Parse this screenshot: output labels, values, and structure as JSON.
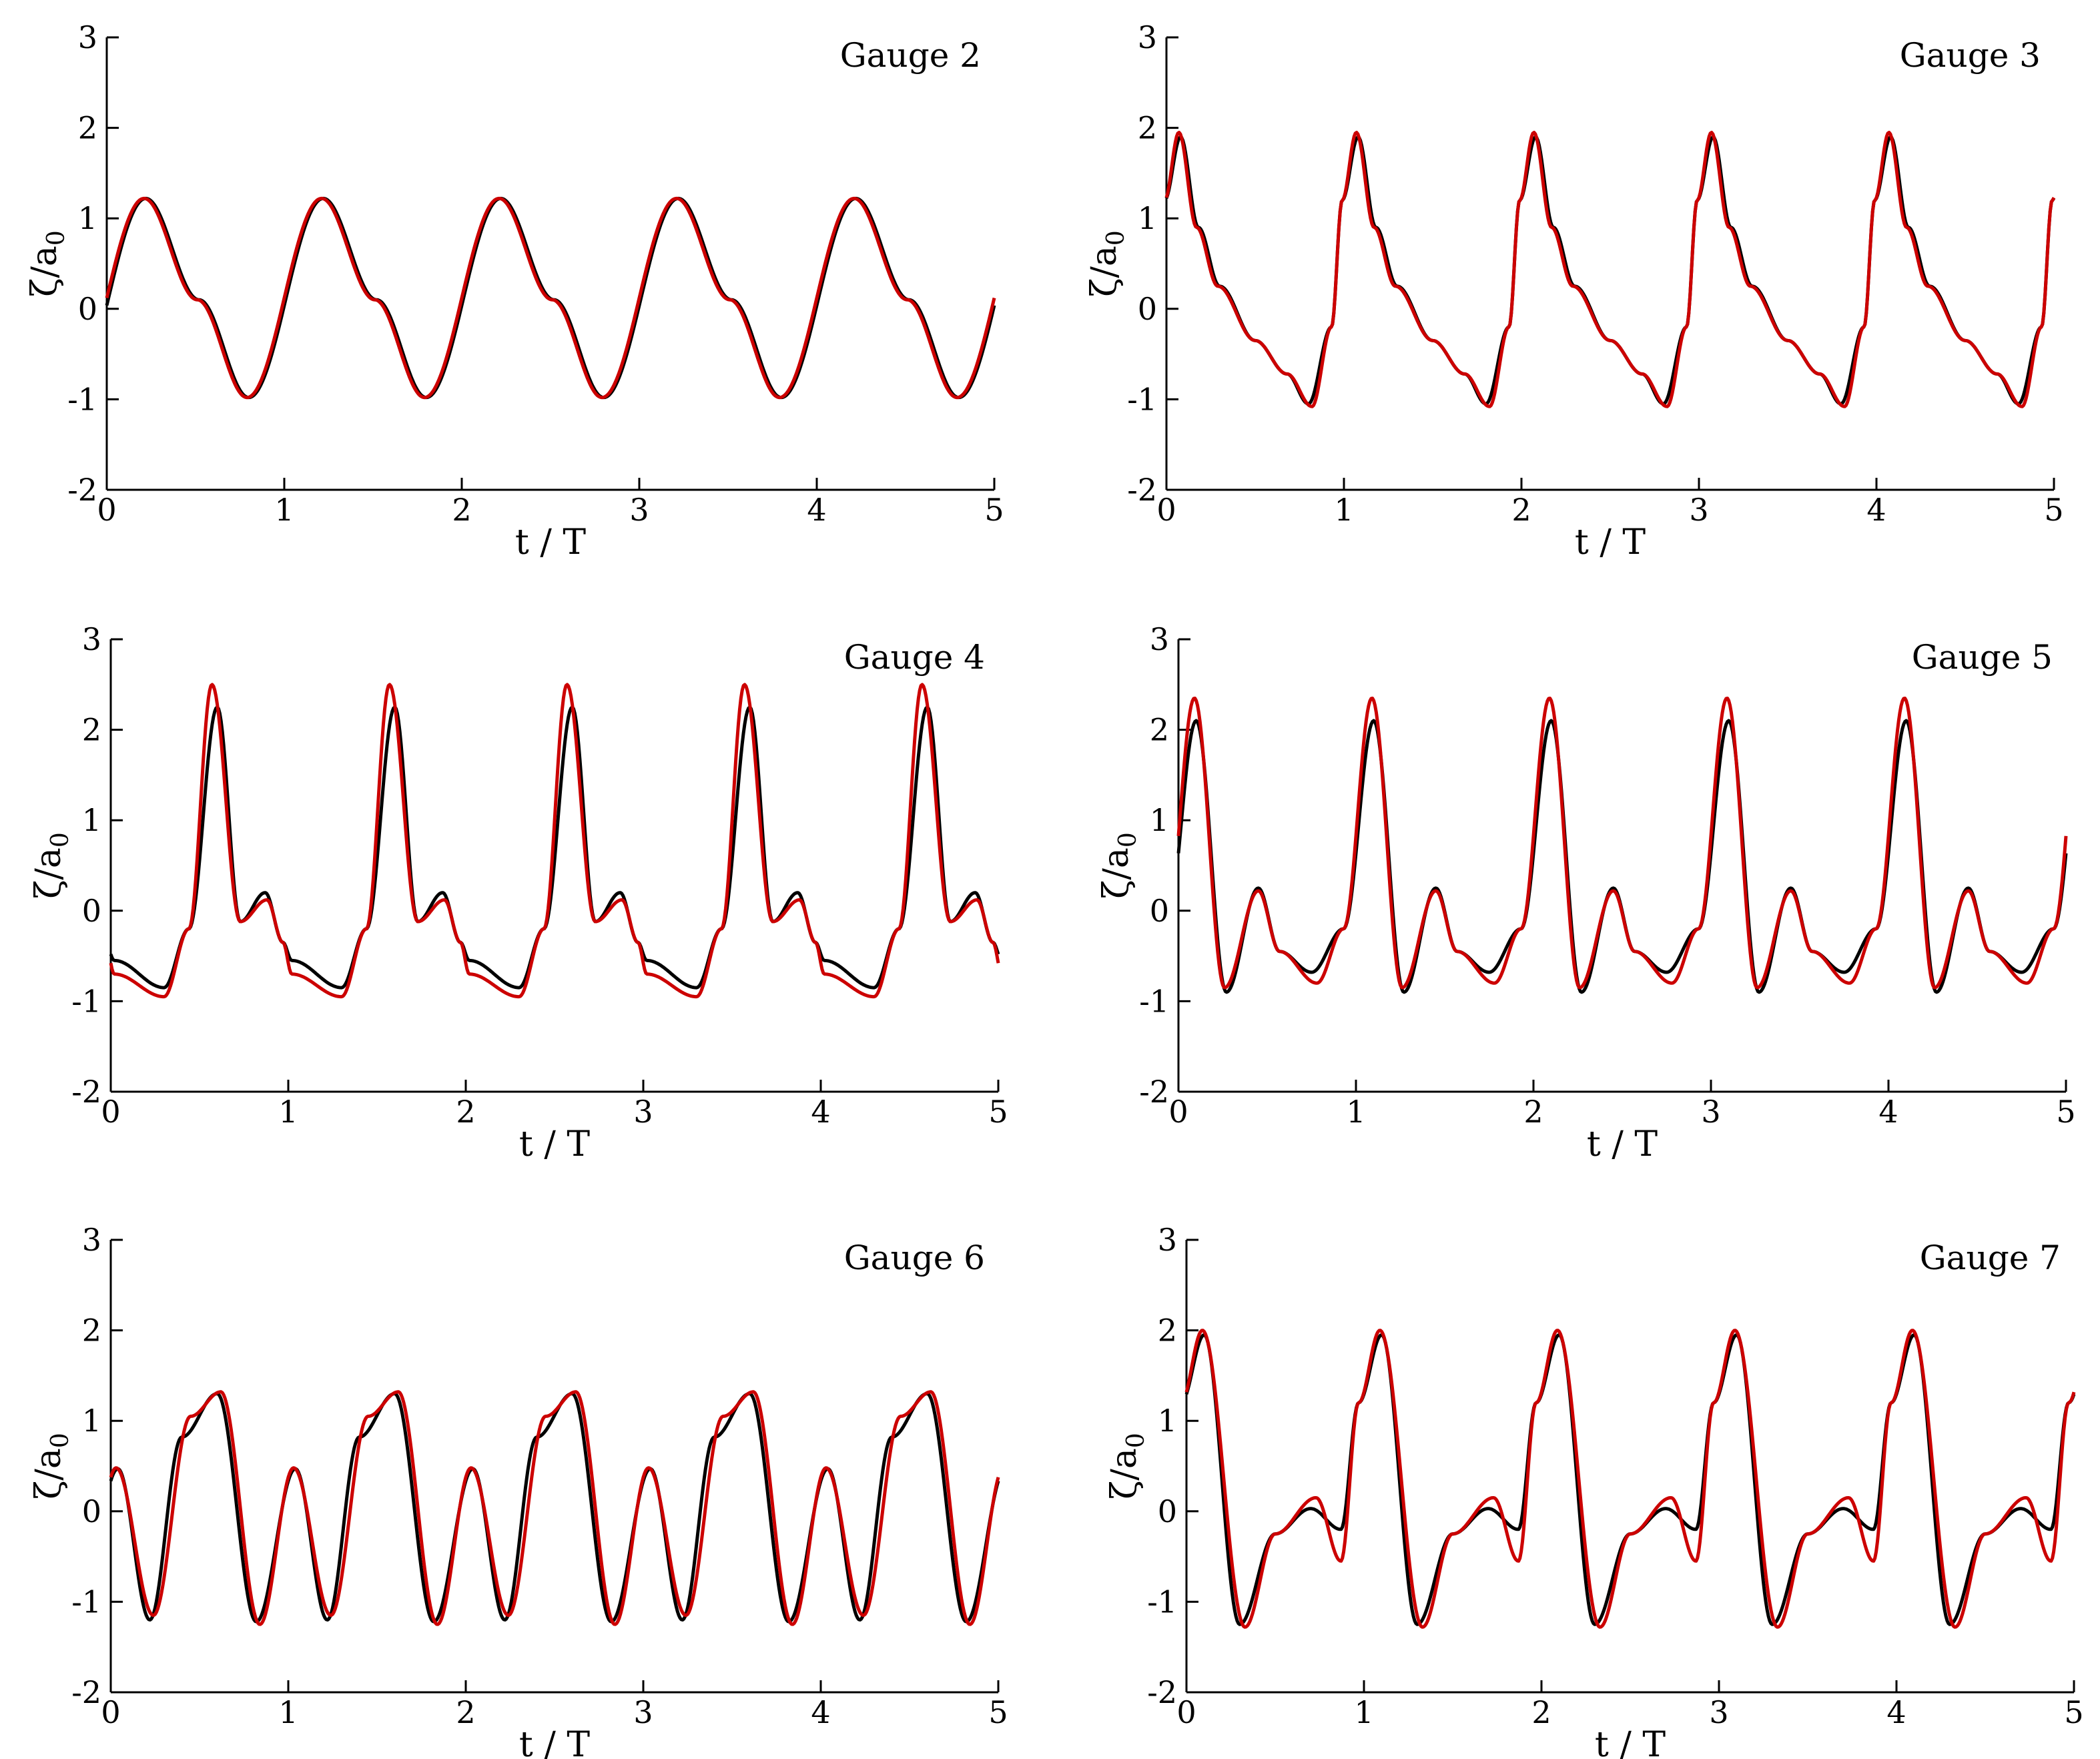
{
  "figure": {
    "colors": {
      "black_series": "#000000",
      "red_series": "#cc0000"
    }
  },
  "chart_data": [
    {
      "type": "line",
      "annotation": "Gauge 2",
      "xlabel": "t / T",
      "ylabel": "ζ/a0",
      "xlim": [
        0,
        5
      ],
      "ylim": [
        -2,
        3
      ],
      "xticks": [
        "0",
        "1",
        "2",
        "3",
        "4",
        "5"
      ],
      "yticks": [
        "-2",
        "-1",
        "0",
        "1",
        "2",
        "3"
      ],
      "grid": false,
      "series": [
        {
          "color": "#000000",
          "profile": "sine",
          "period": 1,
          "phase": 0.0,
          "amp_pos": 1.22,
          "amp_neg": 0.98,
          "offset": 0.12,
          "harmonics": []
        },
        {
          "color": "#cc0000",
          "profile": "sine",
          "period": 1,
          "phase": 0.01,
          "amp_pos": 1.22,
          "amp_neg": 0.98,
          "offset": 0.12,
          "harmonics": []
        }
      ]
    },
    {
      "type": "line",
      "annotation": "Gauge 3",
      "xlabel": "t / T",
      "ylabel": "ζ/a0",
      "xlim": [
        0,
        5
      ],
      "ylim": [
        -2,
        3
      ],
      "xticks": [
        "0",
        "1",
        "2",
        "3",
        "4",
        "5"
      ],
      "yticks": [
        "-2",
        "-1",
        "0",
        "1",
        "2",
        "3"
      ],
      "grid": false,
      "series": [
        {
          "color": "#000000",
          "profile": "peaked",
          "period": 1,
          "peaks": [
            {
              "t": 0.08,
              "y": 1.9
            }
          ],
          "trough": {
            "t": 0.8,
            "y": -1.05
          },
          "phase": 0.0
        },
        {
          "color": "#cc0000",
          "profile": "peaked",
          "period": 1,
          "peaks": [
            {
              "t": 0.07,
              "y": 1.95
            }
          ],
          "trough": {
            "t": 0.82,
            "y": -1.08
          },
          "phase": 0.0
        }
      ]
    },
    {
      "type": "line",
      "annotation": "Gauge 4",
      "xlabel": "t / T",
      "ylabel": "ζ/a0",
      "xlim": [
        0,
        5
      ],
      "ylim": [
        -2,
        3
      ],
      "xticks": [
        "0",
        "1",
        "2",
        "3",
        "4",
        "5"
      ],
      "yticks": [
        "-2",
        "-1",
        "0",
        "1",
        "2",
        "3"
      ],
      "grid": false,
      "series": [
        {
          "color": "#000000",
          "profile": "spike",
          "period": 1,
          "phase": 0.0,
          "spike_t": 0.6,
          "spike_y": 2.25,
          "second_t": 0.87,
          "second_y": 0.2,
          "base": -0.55,
          "dip": -0.85
        },
        {
          "color": "#cc0000",
          "profile": "spike",
          "period": 1,
          "phase": 0.0,
          "spike_t": 0.57,
          "spike_y": 2.5,
          "second_t": 0.88,
          "second_y": 0.12,
          "base": -0.7,
          "dip": -0.95
        }
      ]
    },
    {
      "type": "line",
      "annotation": "Gauge 5",
      "xlabel": "t / T",
      "ylabel": "ζ/a0",
      "xlim": [
        0,
        5
      ],
      "ylim": [
        -2,
        3
      ],
      "xticks": [
        "0",
        "1",
        "2",
        "3",
        "4",
        "5"
      ],
      "yticks": [
        "-2",
        "-1",
        "0",
        "1",
        "2",
        "3"
      ],
      "grid": false,
      "series": [
        {
          "color": "#000000",
          "profile": "double",
          "period": 1,
          "phase": 0.0,
          "p1_t": 0.1,
          "p1_y": 2.1,
          "p2_t": 0.45,
          "p2_y": 0.25,
          "trough1_t": 0.27,
          "trough1_y": -0.9,
          "trough2_t": 0.75,
          "trough2_y": -0.68
        },
        {
          "color": "#cc0000",
          "profile": "double",
          "period": 1,
          "phase": 0.0,
          "p1_t": 0.09,
          "p1_y": 2.35,
          "p2_t": 0.45,
          "p2_y": 0.22,
          "trough1_t": 0.26,
          "trough1_y": -0.85,
          "trough2_t": 0.78,
          "trough2_y": -0.8
        }
      ]
    },
    {
      "type": "line",
      "annotation": "Gauge 6",
      "xlabel": "t / T",
      "ylabel": "ζ/a0",
      "xlim": [
        0,
        5
      ],
      "ylim": [
        -2,
        3
      ],
      "xticks": [
        "0",
        "1",
        "2",
        "3",
        "4",
        "5"
      ],
      "yticks": [
        "-2",
        "-1",
        "0",
        "1",
        "2",
        "3"
      ],
      "grid": false,
      "series": [
        {
          "color": "#000000",
          "profile": "twin",
          "period": 1,
          "phase": 0.0,
          "a_t": 0.6,
          "a_y": 1.3,
          "b_t": 0.04,
          "b_y": 0.47,
          "t1_t": 0.22,
          "t1_y": -1.2,
          "t2_t": 0.82,
          "t2_y": -1.22,
          "shoulder_t": 0.4,
          "shoulder_y": 0.82
        },
        {
          "color": "#cc0000",
          "profile": "twin",
          "period": 1,
          "phase": 0.0,
          "a_t": 0.62,
          "a_y": 1.32,
          "b_t": 0.03,
          "b_y": 0.48,
          "t1_t": 0.24,
          "t1_y": -1.15,
          "t2_t": 0.84,
          "t2_y": -1.25,
          "shoulder_t": 0.45,
          "shoulder_y": 1.05
        }
      ]
    },
    {
      "type": "line",
      "annotation": "Gauge 7",
      "xlabel": "t / T",
      "ylabel": "ζ/a0",
      "xlim": [
        0,
        5
      ],
      "ylim": [
        -2,
        3
      ],
      "xticks": [
        "0",
        "1",
        "2",
        "3",
        "4",
        "5"
      ],
      "yticks": [
        "-2",
        "-1",
        "0",
        "1",
        "2",
        "3"
      ],
      "grid": false,
      "series": [
        {
          "color": "#000000",
          "profile": "g7",
          "period": 1,
          "phase": 0.0,
          "peak_t": 0.1,
          "peak_y": 1.95,
          "trough_t": 0.3,
          "trough_y": -1.25,
          "bump_t": 0.7,
          "bump_y": 0.03,
          "dip_t": 0.87,
          "dip_y": -0.2
        },
        {
          "color": "#cc0000",
          "profile": "g7",
          "period": 1,
          "phase": 0.0,
          "peak_t": 0.09,
          "peak_y": 2.0,
          "trough_t": 0.33,
          "trough_y": -1.28,
          "bump_t": 0.73,
          "bump_y": 0.15,
          "dip_t": 0.87,
          "dip_y": -0.55
        }
      ]
    }
  ]
}
